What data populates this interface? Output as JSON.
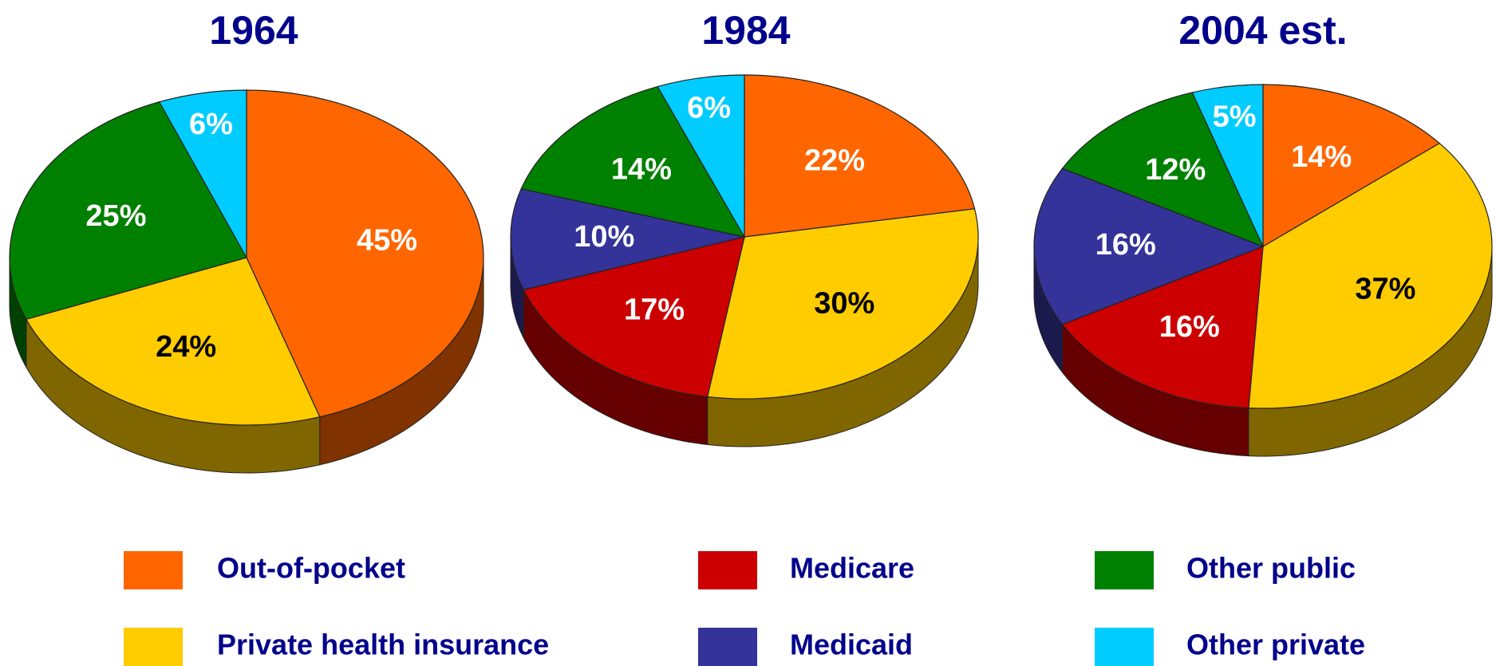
{
  "chart_data": {
    "type": "pie",
    "categories": [
      "Out-of-pocket",
      "Private health insurance",
      "Medicare",
      "Medicaid",
      "Other public",
      "Other private"
    ],
    "colors": [
      "#ff6600",
      "#ffcc00",
      "#cc0000",
      "#333399",
      "#008000",
      "#00ccff"
    ],
    "series": [
      {
        "name": "1964",
        "values": [
          45,
          24,
          null,
          null,
          25,
          6
        ],
        "value_labels": [
          "45%",
          "24%",
          null,
          null,
          "25%",
          "6%"
        ]
      },
      {
        "name": "1984",
        "values": [
          22,
          30,
          17,
          10,
          14,
          6
        ],
        "value_labels": [
          "22%",
          "30%",
          "17%",
          "10%",
          "14%",
          "6%"
        ]
      },
      {
        "name": "2004 est.",
        "values": [
          14,
          37,
          16,
          16,
          12,
          5
        ],
        "value_labels": [
          "14%",
          "37%",
          "16%",
          "16%",
          "12%",
          "5%"
        ]
      }
    ]
  }
}
